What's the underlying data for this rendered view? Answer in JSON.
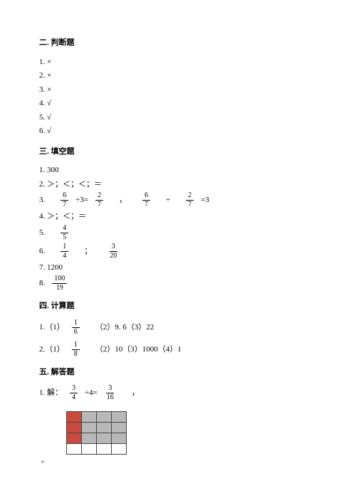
{
  "s2": {
    "title": "二. 判断题",
    "items": [
      "1. ×",
      "2. ×",
      "3. ×",
      "4. √",
      "5. √",
      "6. √"
    ]
  },
  "s3": {
    "title": "三. 填空题",
    "l1": "1. 300",
    "l2": "2. ＞；＜；＜；＝",
    "l3": {
      "p": "3.",
      "a_n": "6",
      "a_d": "7",
      "mid1": "÷3=",
      "b_n": "2",
      "b_d": "7",
      "comma": "，",
      "c_n": "6",
      "c_d": "7",
      "div": "÷",
      "d_n": "2",
      "d_d": "7",
      "eq": "=3"
    },
    "l4": "4. ＞；＜；＝",
    "l5": {
      "p": "5.",
      "n": "4",
      "d": "5"
    },
    "l6": {
      "p": "6.",
      "a_n": "1",
      "a_d": "4",
      "sep": "；",
      "b_n": "3",
      "b_d": "20"
    },
    "l7": "7. 1200",
    "l8": {
      "p": "8.",
      "n": "100",
      "d": "19"
    }
  },
  "s4": {
    "title": "四. 计算题",
    "l1": {
      "p": "1.（1）",
      "n": "1",
      "d": "6",
      "rest": "（2）9. 6（3）22"
    },
    "l2": {
      "p": "2.（1）",
      "n": "1",
      "d": "8",
      "rest": "（2）10（3）1000（4）1"
    }
  },
  "s5": {
    "title": "五. 解答题",
    "l1": {
      "p": "1. 解：",
      "a_n": "3",
      "a_d": "4",
      "mid": "÷4=",
      "b_n": "3",
      "b_d": "16",
      "comma": "，"
    },
    "grid": [
      [
        "red",
        "grey",
        "grey",
        "grey"
      ],
      [
        "red",
        "grey",
        "grey",
        "grey"
      ],
      [
        "red",
        "grey",
        "grey",
        "grey"
      ],
      [
        "white",
        "white",
        "white",
        "white"
      ]
    ],
    "period": "。"
  }
}
